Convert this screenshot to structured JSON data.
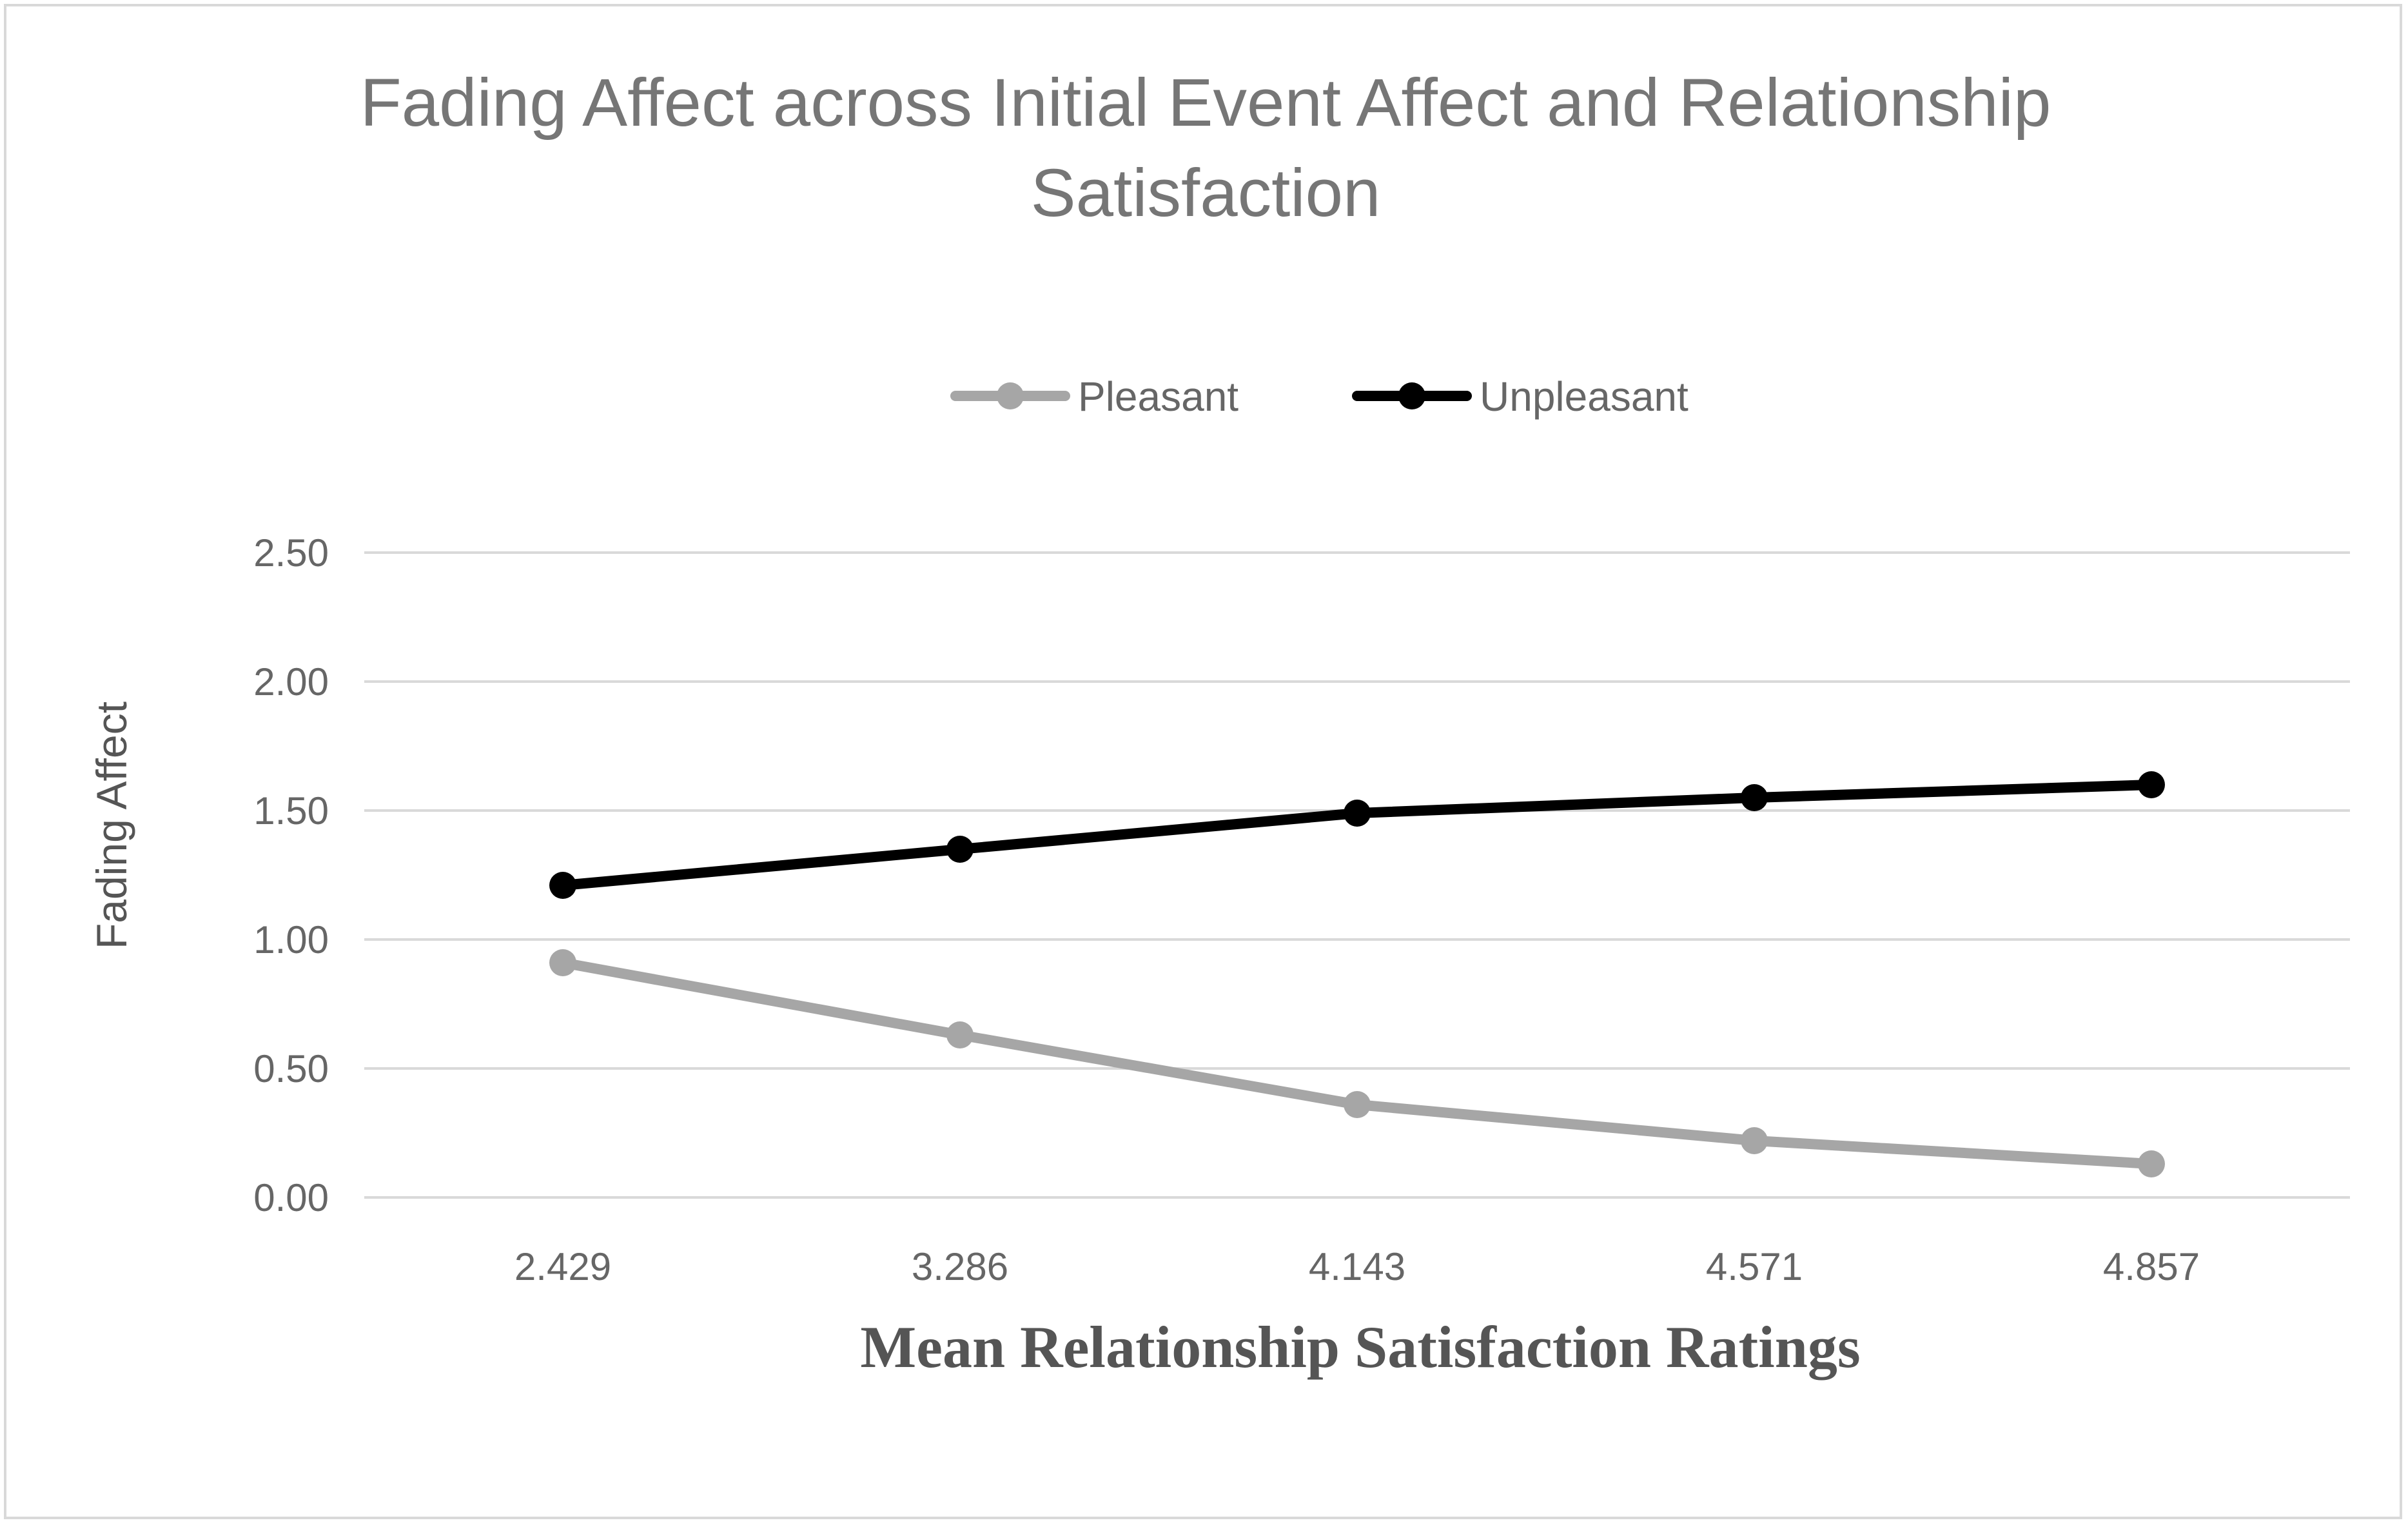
{
  "chart_data": {
    "type": "line",
    "title": "Fading Affect across Initial Event Affect and Relationship Satisfaction",
    "title_lines": [
      "Fading Affect across Initial Event Affect and Relationship",
      "Satisfaction"
    ],
    "xlabel": "Mean Relationship Satisfaction Ratings",
    "ylabel": "Fading Affect",
    "categories": [
      "2.429",
      "3.286",
      "4.143",
      "4.571",
      "4.857"
    ],
    "ylim": [
      0,
      2.5
    ],
    "yticks": [
      "0.00",
      "0.50",
      "1.00",
      "1.50",
      "2.00",
      "2.50"
    ],
    "grid": true,
    "legend_position": "top-center",
    "series": [
      {
        "name": "Pleasant",
        "color": "#a6a6a6",
        "values": [
          0.91,
          0.63,
          0.36,
          0.22,
          0.13
        ]
      },
      {
        "name": "Unpleasant",
        "color": "#000000",
        "values": [
          1.21,
          1.35,
          1.49,
          1.55,
          1.6
        ]
      }
    ]
  }
}
